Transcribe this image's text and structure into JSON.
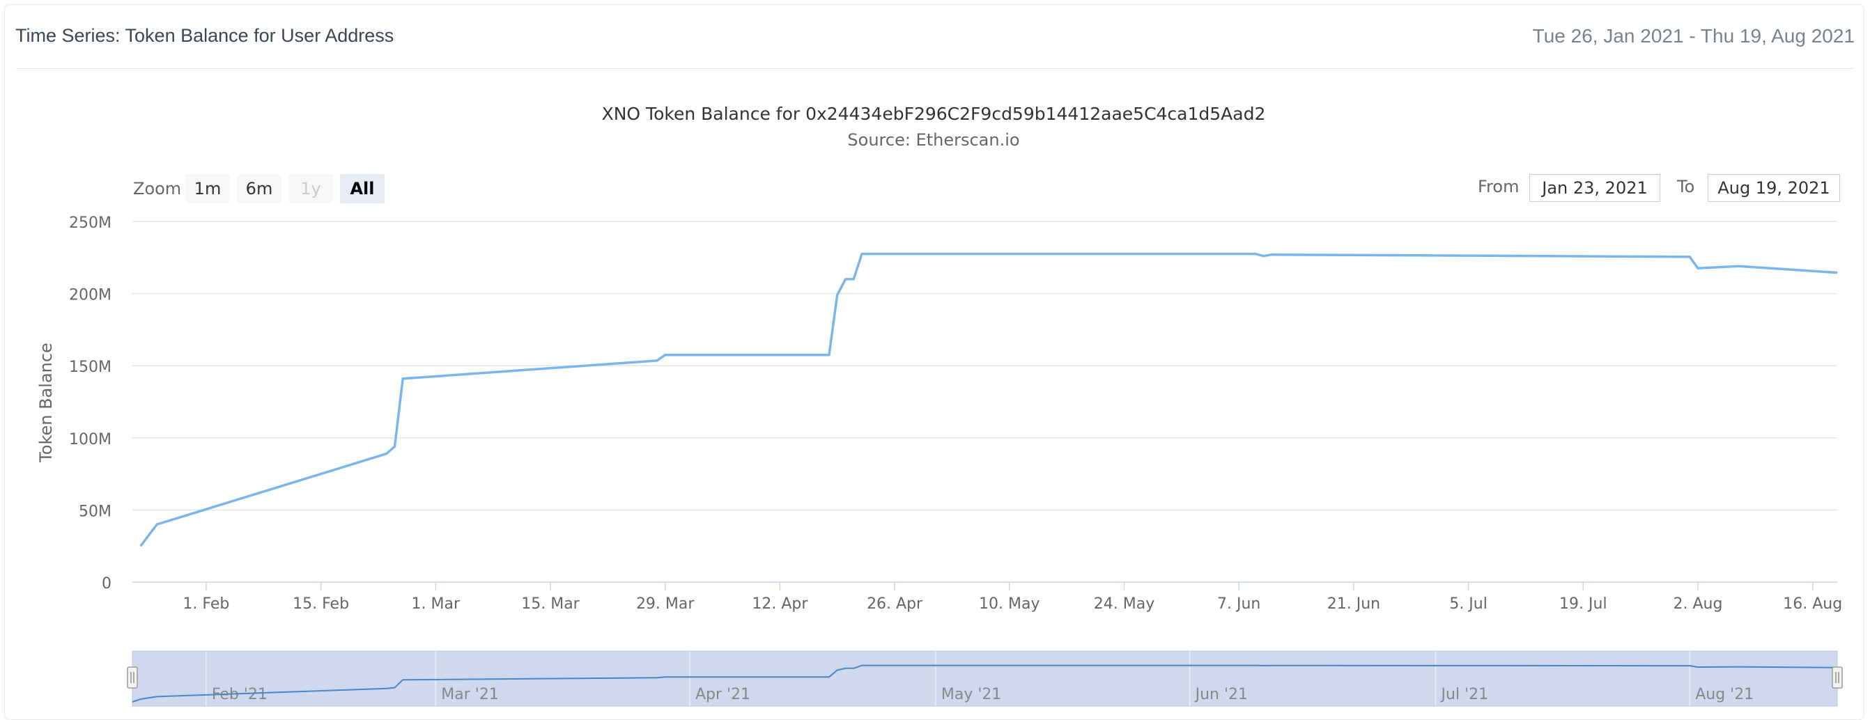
{
  "header": {
    "title": "Time Series: Token Balance for User Address",
    "date_range": "Tue 26, Jan 2021 - Thu 19, Aug 2021"
  },
  "range_selector": {
    "zoom_label": "Zoom",
    "buttons": [
      {
        "label": "1m",
        "state": "normal"
      },
      {
        "label": "6m",
        "state": "normal"
      },
      {
        "label": "1y",
        "state": "disabled"
      },
      {
        "label": "All",
        "state": "selected"
      }
    ],
    "from_label": "From",
    "from_value": "Jan 23, 2021",
    "to_label": "To",
    "to_value": "Aug 19, 2021"
  },
  "colors": {
    "series": "#7cb5ec",
    "navigator_fill": "#ccd6eb",
    "text": "#333333",
    "axis_text": "#666666",
    "grid": "#e6e6e6",
    "selected_button": "#e6ebf5"
  },
  "chart_data": {
    "type": "line",
    "title": "XNO Token Balance for 0x24434ebF296C2F9cd59b14412aae5C4ca1d5Aad2",
    "subtitle": "Source: Etherscan.io",
    "ylabel": "Token Balance",
    "ylim": [
      0,
      250000000
    ],
    "y_ticks": [
      {
        "value": 0,
        "label": "0"
      },
      {
        "value": 50000000,
        "label": "50M"
      },
      {
        "value": 100000000,
        "label": "100M"
      },
      {
        "value": 150000000,
        "label": "150M"
      },
      {
        "value": 200000000,
        "label": "200M"
      },
      {
        "value": 250000000,
        "label": "250M"
      }
    ],
    "xlim": [
      "2021-01-23",
      "2021-08-19"
    ],
    "x_ticks": [
      {
        "date": "2021-02-01",
        "label": "1. Feb"
      },
      {
        "date": "2021-02-15",
        "label": "15. Feb"
      },
      {
        "date": "2021-03-01",
        "label": "1. Mar"
      },
      {
        "date": "2021-03-15",
        "label": "15. Mar"
      },
      {
        "date": "2021-03-29",
        "label": "29. Mar"
      },
      {
        "date": "2021-04-12",
        "label": "12. Apr"
      },
      {
        "date": "2021-04-26",
        "label": "26. Apr"
      },
      {
        "date": "2021-05-10",
        "label": "10. May"
      },
      {
        "date": "2021-05-24",
        "label": "24. May"
      },
      {
        "date": "2021-06-07",
        "label": "7. Jun"
      },
      {
        "date": "2021-06-21",
        "label": "21. Jun"
      },
      {
        "date": "2021-07-05",
        "label": "5. Jul"
      },
      {
        "date": "2021-07-19",
        "label": "19. Jul"
      },
      {
        "date": "2021-08-02",
        "label": "2. Aug"
      },
      {
        "date": "2021-08-16",
        "label": "16. Aug"
      }
    ],
    "navigator_ticks": [
      {
        "date": "2021-02-01",
        "label": "Feb '21"
      },
      {
        "date": "2021-03-01",
        "label": "Mar '21"
      },
      {
        "date": "2021-04-01",
        "label": "Apr '21"
      },
      {
        "date": "2021-05-01",
        "label": "May '21"
      },
      {
        "date": "2021-06-01",
        "label": "Jun '21"
      },
      {
        "date": "2021-07-01",
        "label": "Jul '21"
      },
      {
        "date": "2021-08-01",
        "label": "Aug '21"
      }
    ],
    "series": [
      {
        "points": [
          {
            "date": "2021-01-24",
            "value": 25000000
          },
          {
            "date": "2021-01-26",
            "value": 40000000
          },
          {
            "date": "2021-02-23",
            "value": 89000000
          },
          {
            "date": "2021-02-24",
            "value": 94000000
          },
          {
            "date": "2021-02-25",
            "value": 141000000
          },
          {
            "date": "2021-03-28",
            "value": 153500000
          },
          {
            "date": "2021-03-29",
            "value": 157500000
          },
          {
            "date": "2021-04-18",
            "value": 157500000
          },
          {
            "date": "2021-04-19",
            "value": 199000000
          },
          {
            "date": "2021-04-20",
            "value": 210000000
          },
          {
            "date": "2021-04-21",
            "value": 210000000
          },
          {
            "date": "2021-04-22",
            "value": 227500000
          },
          {
            "date": "2021-06-09",
            "value": 227500000
          },
          {
            "date": "2021-06-10",
            "value": 226000000
          },
          {
            "date": "2021-06-11",
            "value": 227000000
          },
          {
            "date": "2021-08-01",
            "value": 225500000
          },
          {
            "date": "2021-08-02",
            "value": 217500000
          },
          {
            "date": "2021-08-07",
            "value": 219000000
          },
          {
            "date": "2021-08-19",
            "value": 214500000
          }
        ]
      }
    ]
  }
}
